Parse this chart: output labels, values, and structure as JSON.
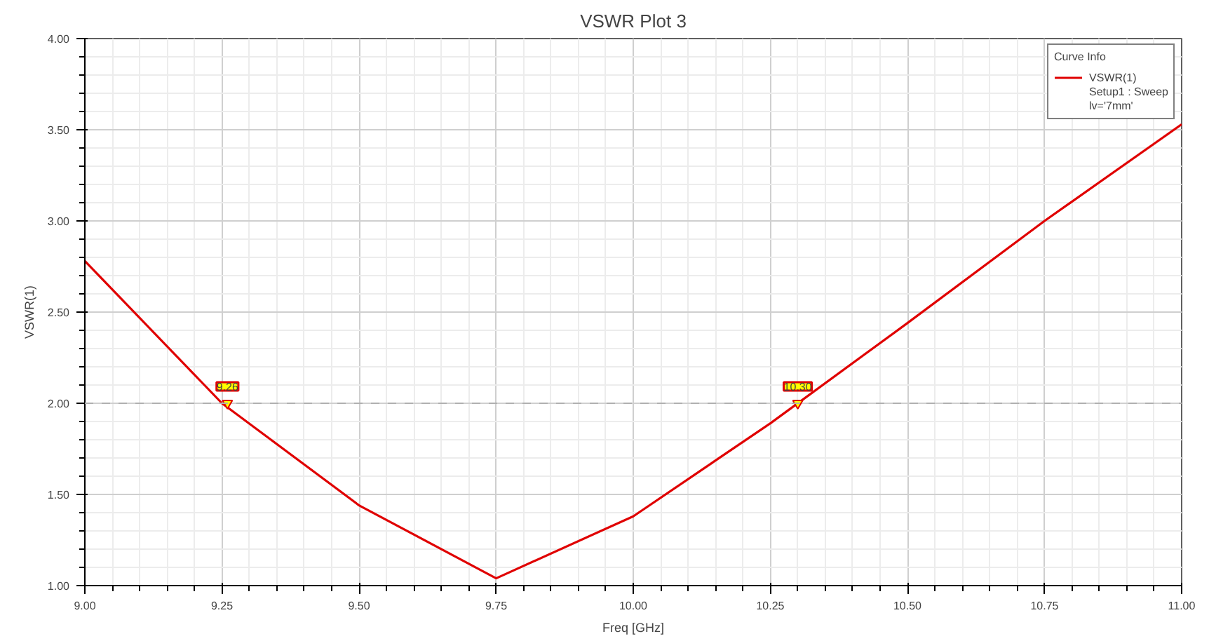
{
  "chart_data": {
    "type": "line",
    "title": "VSWR Plot 3",
    "xlabel": "Freq [GHz]",
    "ylabel": "VSWR(1)",
    "x": [
      9.0,
      9.25,
      9.5,
      9.75,
      10.0,
      10.25,
      10.5,
      10.75,
      11.0
    ],
    "series": [
      {
        "name": "VSWR(1)",
        "color": "#e00000",
        "values": [
          2.78,
          2.0,
          1.44,
          1.04,
          1.38,
          1.89,
          2.44,
          3.0,
          3.53
        ]
      }
    ],
    "legend_title": "Curve Info",
    "annotations": [
      {
        "text": "9.26",
        "x": 9.26,
        "y": 2.0
      },
      {
        "text": "10.30",
        "x": 10.3,
        "y": 2.0
      },
      "Setup1 : Sweep",
      "lv='7mm'"
    ],
    "ref_lines": [
      {
        "axis": "y",
        "value": 2.0,
        "label": null,
        "color": "#b0b0b0",
        "line_style": "dashed"
      }
    ],
    "xlim": [
      9.0,
      11.0
    ],
    "ylim": [
      1.0,
      4.0
    ],
    "xticks": [
      {
        "value": 9.0,
        "label": "9.00"
      },
      {
        "value": 9.25,
        "label": "9.25"
      },
      {
        "value": 9.5,
        "label": "9.50"
      },
      {
        "value": 9.75,
        "label": "9.75"
      },
      {
        "value": 10.0,
        "label": "10.00"
      },
      {
        "value": 10.25,
        "label": "10.25"
      },
      {
        "value": 10.5,
        "label": "10.50"
      },
      {
        "value": 10.75,
        "label": "10.75"
      },
      {
        "value": 11.0,
        "label": "11.00"
      }
    ],
    "yticks": [
      {
        "value": 1.0,
        "label": "1.00"
      },
      {
        "value": 1.5,
        "label": "1.50"
      },
      {
        "value": 2.0,
        "label": "2.00"
      },
      {
        "value": 2.5,
        "label": "2.50"
      },
      {
        "value": 3.0,
        "label": "3.00"
      },
      {
        "value": 3.5,
        "label": "3.50"
      },
      {
        "value": 4.0,
        "label": "4.00"
      }
    ],
    "grid": true,
    "legend": "top right",
    "marker": "none",
    "line_style": "solid"
  }
}
